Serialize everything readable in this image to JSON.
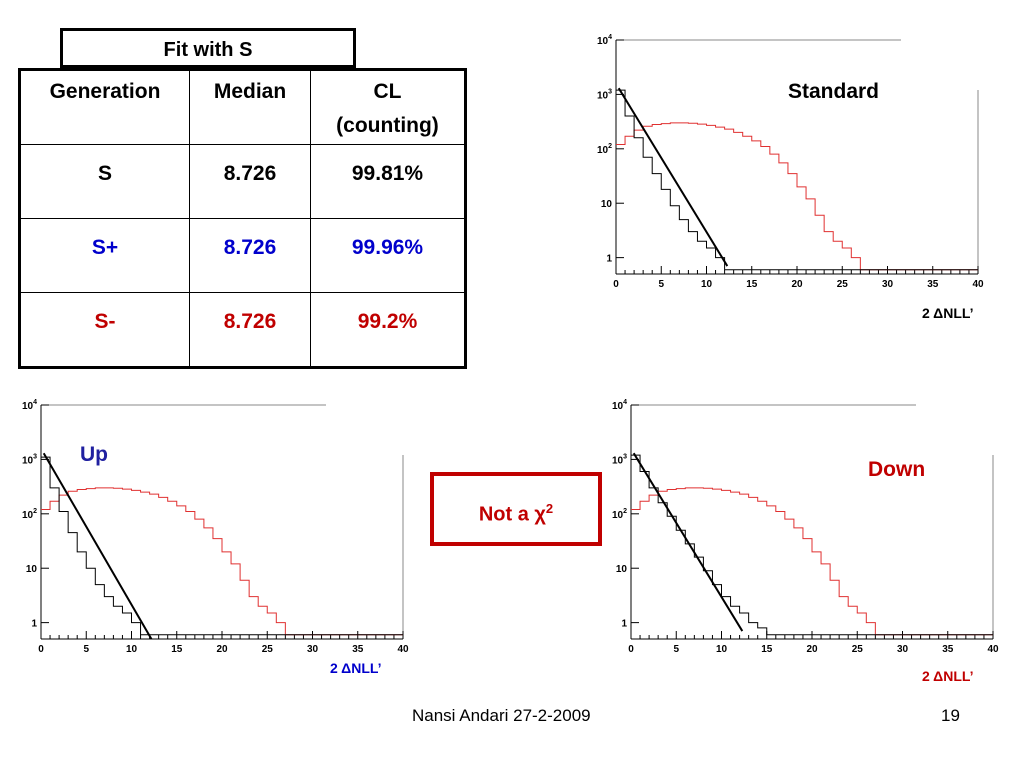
{
  "table_title": "Fit with S",
  "table": {
    "headers": [
      "Generation",
      "Median",
      "CL (counting)"
    ],
    "rows": [
      {
        "cells": [
          "S",
          "8.726",
          "99.81%"
        ],
        "color": "#000000"
      },
      {
        "cells": [
          "S+",
          "8.726",
          "99.96%"
        ],
        "color": "#0000cc"
      },
      {
        "cells": [
          "S-",
          "8.726",
          "99.2%"
        ],
        "color": "#c00000"
      }
    ]
  },
  "note": {
    "text": "Not a ",
    "symbol": "χ",
    "sup": "2",
    "color": "#c00000"
  },
  "footer": {
    "author_date": "Nansi Andari 27-2-2009",
    "page": "19"
  },
  "colors": {
    "red_hist": "#e03030",
    "black_hist": "#000000",
    "blue_label": "#2020a0",
    "red_label": "#c00000"
  },
  "chart_data": [
    {
      "type": "line",
      "panel": "Standard",
      "title": "Standard",
      "xlabel": "2 ΔNLL’",
      "xlim": [
        0,
        40
      ],
      "ylim": [
        0.5,
        10000
      ],
      "log_y": true,
      "x_ticks": [
        "0",
        "5",
        "10",
        "15",
        "20",
        "25",
        "30",
        "35",
        "40"
      ],
      "y_ticks": [
        "1",
        "10",
        "10^2",
        "10^3",
        "10^4"
      ],
      "series": [
        {
          "color": "#e03030",
          "style": "step",
          "x": [
            0,
            1,
            2,
            3,
            4,
            5,
            6,
            7,
            8,
            9,
            10,
            11,
            12,
            13,
            14,
            15,
            16,
            17,
            18,
            19,
            20,
            21,
            22,
            23,
            24,
            25,
            26,
            27,
            28,
            29,
            30,
            40
          ],
          "y": [
            120,
            170,
            220,
            260,
            280,
            290,
            300,
            300,
            295,
            285,
            270,
            250,
            230,
            200,
            170,
            140,
            110,
            80,
            55,
            35,
            20,
            12,
            6,
            3,
            2,
            1.5,
            1,
            0.6,
            0.6,
            0.6,
            0.6,
            0.6
          ]
        },
        {
          "color": "#000000",
          "style": "step",
          "x": [
            0,
            1,
            2,
            3,
            4,
            5,
            6,
            7,
            8,
            9,
            10,
            11,
            12,
            13,
            16,
            40
          ],
          "y": [
            1200,
            400,
            160,
            70,
            35,
            18,
            9,
            5,
            3,
            2,
            1.5,
            1,
            0.6,
            0.6,
            0.6,
            0.6
          ]
        },
        {
          "color": "#000000",
          "style": "line",
          "x": [
            0.3,
            12.3
          ],
          "y": [
            1300,
            0.7
          ]
        }
      ]
    },
    {
      "type": "line",
      "panel": "Up",
      "title": "Up",
      "xlabel": "2 ΔNLL’",
      "xlim": [
        0,
        40
      ],
      "ylim": [
        0.5,
        10000
      ],
      "log_y": true,
      "x_ticks": [
        "0",
        "5",
        "10",
        "15",
        "20",
        "25",
        "30",
        "35",
        "40"
      ],
      "y_ticks": [
        "1",
        "10",
        "10^2",
        "10^3",
        "10^4"
      ],
      "series": [
        {
          "color": "#e03030",
          "style": "step",
          "x": [
            0,
            1,
            2,
            3,
            4,
            5,
            6,
            7,
            8,
            9,
            10,
            11,
            12,
            13,
            14,
            15,
            16,
            17,
            18,
            19,
            20,
            21,
            22,
            23,
            24,
            25,
            26,
            27,
            28,
            29,
            30,
            40
          ],
          "y": [
            120,
            170,
            220,
            260,
            280,
            290,
            300,
            300,
            295,
            285,
            270,
            250,
            230,
            200,
            170,
            140,
            110,
            80,
            55,
            35,
            20,
            12,
            6,
            3,
            2,
            1.5,
            1,
            0.6,
            0.6,
            0.6,
            0.6,
            0.6
          ]
        },
        {
          "color": "#000000",
          "style": "step",
          "x": [
            0,
            1,
            2,
            3,
            4,
            5,
            6,
            7,
            8,
            9,
            10,
            11,
            12,
            13,
            16,
            40
          ],
          "y": [
            1100,
            300,
            110,
            45,
            20,
            10,
            5,
            3,
            2,
            1.5,
            1,
            0.6,
            0.6,
            0.6,
            0.6,
            0.6
          ]
        },
        {
          "color": "#000000",
          "style": "line",
          "x": [
            0.3,
            12.2
          ],
          "y": [
            1300,
            0.5
          ]
        }
      ]
    },
    {
      "type": "line",
      "panel": "Down",
      "title": "Down",
      "xlabel": "2 ΔNLL’",
      "xlim": [
        0,
        40
      ],
      "ylim": [
        0.5,
        10000
      ],
      "log_y": true,
      "x_ticks": [
        "0",
        "5",
        "10",
        "15",
        "20",
        "25",
        "30",
        "35",
        "40"
      ],
      "y_ticks": [
        "1",
        "10",
        "10^2",
        "10^3",
        "10^4"
      ],
      "series": [
        {
          "color": "#e03030",
          "style": "step",
          "x": [
            0,
            1,
            2,
            3,
            4,
            5,
            6,
            7,
            8,
            9,
            10,
            11,
            12,
            13,
            14,
            15,
            16,
            17,
            18,
            19,
            20,
            21,
            22,
            23,
            24,
            25,
            26,
            27,
            28,
            29,
            30,
            40
          ],
          "y": [
            120,
            170,
            220,
            260,
            280,
            290,
            300,
            300,
            295,
            285,
            270,
            250,
            230,
            200,
            170,
            140,
            110,
            80,
            55,
            35,
            20,
            12,
            6,
            3,
            2,
            1.5,
            1,
            0.6,
            0.6,
            0.6,
            0.6,
            0.6
          ]
        },
        {
          "color": "#000000",
          "style": "step",
          "x": [
            0,
            1,
            2,
            3,
            4,
            5,
            6,
            7,
            8,
            9,
            10,
            11,
            12,
            13,
            14,
            15,
            16,
            17,
            40
          ],
          "y": [
            1200,
            600,
            300,
            160,
            90,
            50,
            28,
            16,
            9,
            5,
            3,
            2,
            1.5,
            1,
            0.8,
            0.6,
            0.6,
            0.6,
            0.6
          ]
        },
        {
          "color": "#000000",
          "style": "line",
          "x": [
            0.3,
            12.3
          ],
          "y": [
            1300,
            0.7
          ]
        }
      ]
    }
  ]
}
